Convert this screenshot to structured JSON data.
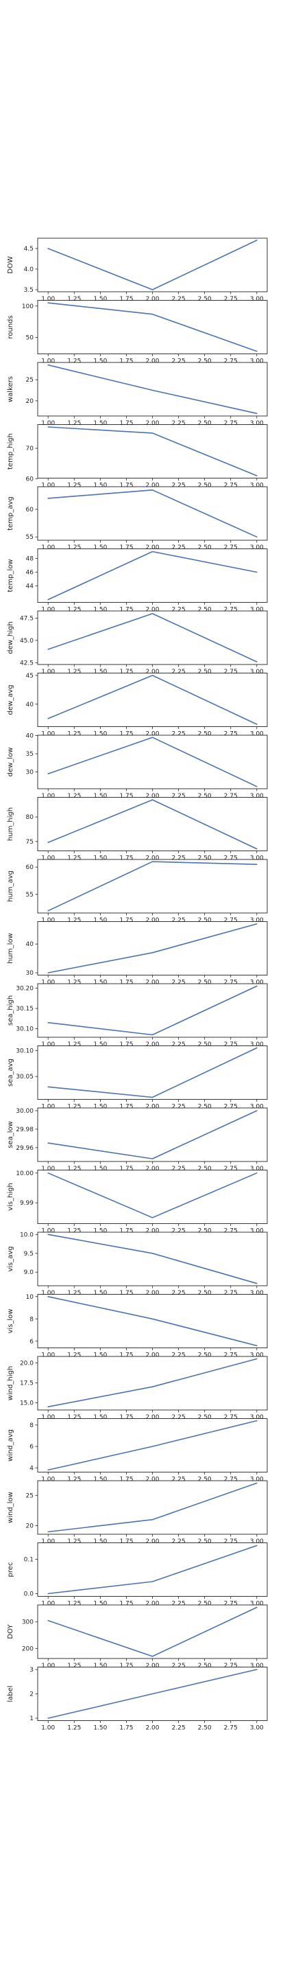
{
  "chart_data": {
    "type": "line",
    "layout": "stacked-subplots",
    "shared_x": [
      1,
      2,
      3
    ],
    "x_ticks": [
      "1.00",
      "1.25",
      "1.50",
      "1.75",
      "2.00",
      "2.25",
      "2.50",
      "2.75",
      "3.00"
    ],
    "xlim": [
      0.9,
      3.1
    ],
    "line_color": "#4c72b0",
    "panels": [
      {
        "ylabel": "DOW",
        "values": [
          4.5,
          3.5,
          4.7
        ],
        "ylim": [
          3.45,
          4.75
        ],
        "yticks": [
          "3.5",
          "4.0",
          "4.5"
        ]
      },
      {
        "ylabel": "rounds",
        "values": [
          105,
          87,
          28
        ],
        "ylim": [
          24,
          109
        ],
        "yticks": [
          "50",
          "100"
        ]
      },
      {
        "ylabel": "walkers",
        "values": [
          28.5,
          22.5,
          17
        ],
        "ylim": [
          16.4,
          29.1
        ],
        "yticks": [
          "20",
          "25"
        ]
      },
      {
        "ylabel": "temp_high",
        "values": [
          77,
          75,
          61
        ],
        "ylim": [
          60.2,
          77.8
        ],
        "yticks": [
          "60",
          "70"
        ]
      },
      {
        "ylabel": "temp_avg",
        "values": [
          62,
          63.5,
          55
        ],
        "ylim": [
          54.4,
          64.1
        ],
        "yticks": [
          "55",
          "60"
        ]
      },
      {
        "ylabel": "temp_low",
        "values": [
          42,
          49,
          46
        ],
        "ylim": [
          41.6,
          49.4
        ],
        "yticks": [
          "44",
          "46",
          "48"
        ]
      },
      {
        "ylabel": "dew_high",
        "values": [
          44,
          48,
          42.6
        ],
        "ylim": [
          42.3,
          48.3
        ],
        "yticks": [
          "42.5",
          "45.0",
          "47.5"
        ]
      },
      {
        "ylabel": "dew_avg",
        "values": [
          37.5,
          45,
          36.5
        ],
        "ylim": [
          36.1,
          45.4
        ],
        "yticks": [
          "40",
          "45"
        ]
      },
      {
        "ylabel": "dew_low",
        "values": [
          29.5,
          39.5,
          26
        ],
        "ylim": [
          25.4,
          40.1
        ],
        "yticks": [
          "30",
          "35",
          "40"
        ]
      },
      {
        "ylabel": "hum_high",
        "values": [
          74.8,
          83.5,
          73.5
        ],
        "ylim": [
          73.1,
          84.0
        ],
        "yticks": [
          "75",
          "80"
        ]
      },
      {
        "ylabel": "hum_avg",
        "values": [
          52,
          61,
          60.5
        ],
        "ylim": [
          51.6,
          61.4
        ],
        "yticks": [
          "55",
          "60"
        ]
      },
      {
        "ylabel": "hum_low",
        "values": [
          30,
          37,
          47
        ],
        "ylim": [
          29.2,
          47.8
        ],
        "yticks": [
          "30",
          "40"
        ]
      },
      {
        "ylabel": "sea_high",
        "values": [
          30.115,
          30.085,
          30.205
        ],
        "ylim": [
          30.079,
          30.211
        ],
        "yticks": [
          "30.10",
          "30.15",
          "30.20"
        ]
      },
      {
        "ylabel": "sea_avg",
        "values": [
          30.03,
          30.01,
          30.105
        ],
        "ylim": [
          30.006,
          30.109
        ],
        "yticks": [
          "30.05",
          "30.10"
        ]
      },
      {
        "ylabel": "sea_low",
        "values": [
          29.965,
          29.948,
          30.0
        ],
        "ylim": [
          29.945,
          30.003
        ],
        "yticks": [
          "29.96",
          "29.98",
          "30.00"
        ]
      },
      {
        "ylabel": "vis_high",
        "values": [
          10.0,
          9.985,
          10.0
        ],
        "ylim": [
          9.983,
          10.001
        ],
        "yticks": [
          "9.99",
          "10.00"
        ]
      },
      {
        "ylabel": "vis_avg",
        "values": [
          10.0,
          9.5,
          8.7
        ],
        "ylim": [
          8.64,
          10.06
        ],
        "yticks": [
          "9.0",
          "9.5",
          "10.0"
        ]
      },
      {
        "ylabel": "vis_low",
        "values": [
          10,
          8,
          5.6
        ],
        "ylim": [
          5.4,
          10.2
        ],
        "yticks": [
          "6",
          "8",
          "10"
        ]
      },
      {
        "ylabel": "wind_high",
        "values": [
          14.5,
          17,
          20.5
        ],
        "ylim": [
          14.1,
          20.8
        ],
        "yticks": [
          "15.0",
          "17.5",
          "20.0"
        ]
      },
      {
        "ylabel": "wind_avg",
        "values": [
          3.8,
          6.0,
          8.4
        ],
        "ylim": [
          3.6,
          8.6
        ],
        "yticks": [
          "4",
          "6",
          "8"
        ]
      },
      {
        "ylabel": "wind_low",
        "values": [
          19,
          21,
          27
        ],
        "ylim": [
          18.6,
          27.4
        ],
        "yticks": [
          "20",
          "25"
        ]
      },
      {
        "ylabel": "prec",
        "values": [
          0.0,
          0.035,
          0.14
        ],
        "ylim": [
          -0.008,
          0.148
        ],
        "yticks": [
          "0.0",
          "0.1"
        ]
      },
      {
        "ylabel": "DOY",
        "values": [
          305,
          170,
          355
        ],
        "ylim": [
          162,
          364
        ],
        "yticks": [
          "200",
          "300"
        ]
      },
      {
        "ylabel": "label",
        "values": [
          1,
          2,
          3
        ],
        "ylim": [
          0.9,
          3.1
        ],
        "yticks": [
          "1",
          "2",
          "3"
        ]
      }
    ]
  }
}
